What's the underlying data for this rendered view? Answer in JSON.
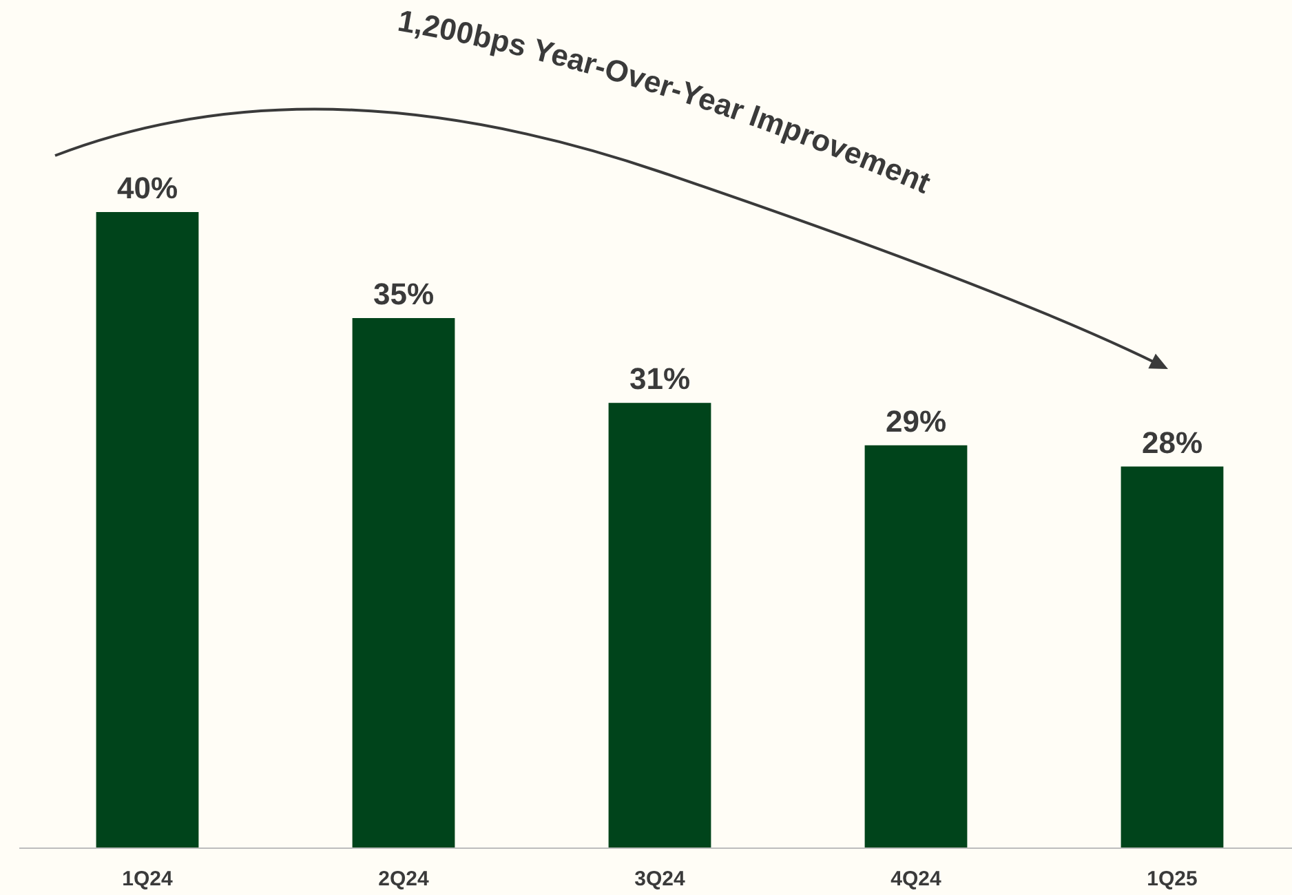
{
  "chart_data": {
    "type": "bar",
    "categories": [
      "1Q24",
      "2Q24",
      "3Q24",
      "4Q24",
      "1Q25"
    ],
    "values": [
      40,
      35,
      31,
      29,
      28
    ],
    "color": "#00441b",
    "ylim": [
      10,
      50
    ],
    "data_labels": true,
    "value_labels": [
      "40%",
      "35%",
      "31%",
      "29%",
      "28%"
    ],
    "annotations": [
      "1,200bps Year-Over-Year Improvement"
    ]
  }
}
